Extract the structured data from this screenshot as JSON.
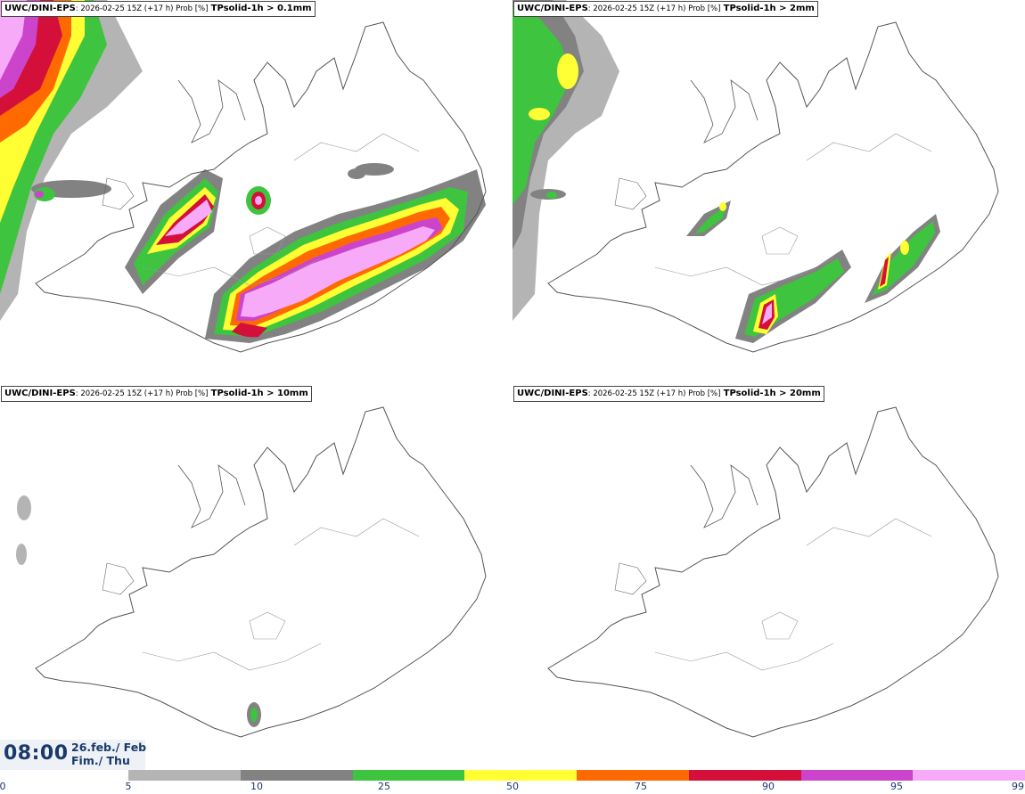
{
  "panels": [
    {
      "model": "UWC/DINI-EPS",
      "meta": ": 2026-02-25 15Z (+17 h) Prob [%]",
      "field": "TPsolid-1h > 0.1mm"
    },
    {
      "model": "UWC/DINI-EPS",
      "meta": ": 2026-02-25 15Z (+17 h) Prob [%]",
      "field": "TPsolid-1h > 2mm"
    },
    {
      "model": "UWC/DINI-EPS",
      "meta": ": 2026-02-25 15Z (+17 h) Prob [%]",
      "field": "TPsolid-1h > 10mm"
    },
    {
      "model": "UWC/DINI-EPS",
      "meta": ": 2026-02-25 15Z (+17 h) Prob [%]",
      "field": "TPsolid-1h > 20mm"
    }
  ],
  "valid_time": {
    "time": "08:00",
    "date_line1": "26.feb./ Feb",
    "date_line2": "Fim./ Thu"
  },
  "colorbar": {
    "ticks": [
      "0",
      "5",
      "10",
      "25",
      "50",
      "75",
      "90",
      "95",
      "99"
    ],
    "colors": [
      "#b4b4b4",
      "#828282",
      "#3ec43e",
      "#ffff33",
      "#ff6a00",
      "#d4103a",
      "#cc44cc",
      "#f7aaf7"
    ]
  }
}
